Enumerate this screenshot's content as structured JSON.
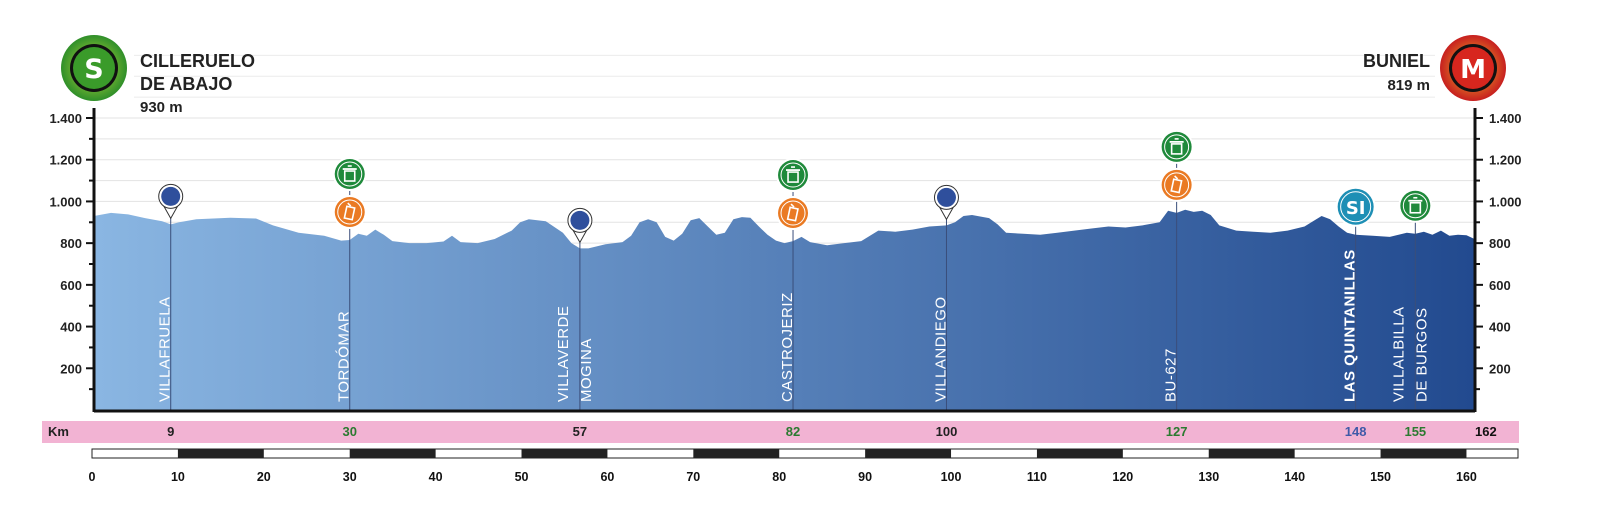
{
  "start": {
    "badge": "S",
    "name_lines": [
      "CILLERUELO",
      "DE ABAJO"
    ],
    "elevation": "930 m",
    "badge_color": "#3a9b2a"
  },
  "finish": {
    "badge": "M",
    "name_lines": [
      "BUNIEL"
    ],
    "elevation": "819 m",
    "badge_color": "#d7261e"
  },
  "colors": {
    "profile_start": "#8ab6e2",
    "profile_end": "#224a8f",
    "km_strip": "#f2b3d3",
    "waypoint_marker": "#2f4f9c",
    "feed_zone": "#1f8a3b",
    "sprint": "#ea7a23",
    "sprint_icon": "#1e8fb5"
  },
  "chart_data": {
    "type": "area",
    "title": "",
    "xlabel": "",
    "ylabel": "",
    "xlim": [
      0,
      162
    ],
    "ylim": [
      0,
      1400
    ],
    "y_ticks": [
      200,
      400,
      600,
      800,
      1000,
      1200,
      1400
    ],
    "y_tick_labels": [
      "200",
      "400",
      "600",
      "800",
      "1.000",
      "1.200",
      "1.400"
    ],
    "x_ticks": [
      0,
      10,
      20,
      30,
      40,
      50,
      60,
      70,
      80,
      90,
      100,
      110,
      120,
      130,
      140,
      150,
      160
    ],
    "km_label": "Km",
    "grid": true,
    "profile": [
      [
        0,
        930
      ],
      [
        2,
        945
      ],
      [
        4,
        938
      ],
      [
        6,
        920
      ],
      [
        8,
        905
      ],
      [
        9,
        890
      ],
      [
        10,
        900
      ],
      [
        12,
        915
      ],
      [
        16,
        922
      ],
      [
        19,
        918
      ],
      [
        21,
        885
      ],
      [
        24,
        850
      ],
      [
        27,
        835
      ],
      [
        29,
        812
      ],
      [
        30,
        815
      ],
      [
        31,
        845
      ],
      [
        32,
        835
      ],
      [
        33,
        865
      ],
      [
        34,
        840
      ],
      [
        35,
        810
      ],
      [
        37,
        800
      ],
      [
        39,
        800
      ],
      [
        41,
        808
      ],
      [
        42,
        835
      ],
      [
        43,
        805
      ],
      [
        45,
        800
      ],
      [
        47,
        820
      ],
      [
        49,
        860
      ],
      [
        50,
        900
      ],
      [
        51,
        915
      ],
      [
        53,
        905
      ],
      [
        55,
        850
      ],
      [
        56,
        800
      ],
      [
        57,
        775
      ],
      [
        58,
        775
      ],
      [
        60,
        795
      ],
      [
        62,
        805
      ],
      [
        63,
        835
      ],
      [
        64,
        900
      ],
      [
        65,
        915
      ],
      [
        66,
        900
      ],
      [
        67,
        830
      ],
      [
        68,
        812
      ],
      [
        69,
        845
      ],
      [
        70,
        910
      ],
      [
        71,
        920
      ],
      [
        72,
        880
      ],
      [
        73,
        840
      ],
      [
        74,
        850
      ],
      [
        75,
        915
      ],
      [
        76,
        925
      ],
      [
        77,
        922
      ],
      [
        78,
        880
      ],
      [
        79,
        840
      ],
      [
        80,
        812
      ],
      [
        81,
        800
      ],
      [
        82,
        810
      ],
      [
        83,
        830
      ],
      [
        84,
        805
      ],
      [
        86,
        790
      ],
      [
        88,
        800
      ],
      [
        90,
        810
      ],
      [
        92,
        860
      ],
      [
        94,
        855
      ],
      [
        96,
        865
      ],
      [
        98,
        880
      ],
      [
        100,
        885
      ],
      [
        101,
        900
      ],
      [
        102,
        930
      ],
      [
        103,
        935
      ],
      [
        105,
        920
      ],
      [
        106,
        890
      ],
      [
        107,
        850
      ],
      [
        109,
        845
      ],
      [
        111,
        840
      ],
      [
        113,
        850
      ],
      [
        115,
        860
      ],
      [
        117,
        870
      ],
      [
        119,
        880
      ],
      [
        121,
        875
      ],
      [
        123,
        885
      ],
      [
        125,
        900
      ],
      [
        126,
        955
      ],
      [
        127,
        945
      ],
      [
        128,
        960
      ],
      [
        129,
        950
      ],
      [
        130,
        955
      ],
      [
        131,
        935
      ],
      [
        132,
        885
      ],
      [
        134,
        860
      ],
      [
        136,
        855
      ],
      [
        138,
        850
      ],
      [
        140,
        860
      ],
      [
        142,
        880
      ],
      [
        143,
        905
      ],
      [
        144,
        930
      ],
      [
        145,
        915
      ],
      [
        146,
        880
      ],
      [
        147,
        850
      ],
      [
        148,
        840
      ],
      [
        150,
        835
      ],
      [
        152,
        830
      ],
      [
        154,
        850
      ],
      [
        155,
        845
      ],
      [
        156,
        855
      ],
      [
        157,
        840
      ],
      [
        158,
        860
      ],
      [
        159,
        835
      ],
      [
        160,
        840
      ],
      [
        161,
        838
      ],
      [
        162,
        819
      ]
    ],
    "waypoints": [
      {
        "km": 9,
        "label_lines": [
          "VILLAFRUELA"
        ],
        "km_label": "9",
        "km_color": "#222222",
        "icons": [
          "pin"
        ],
        "bold": false
      },
      {
        "km": 30,
        "label_lines": [
          "TORDÓMAR"
        ],
        "km_label": "30",
        "km_color": "#2b7a30",
        "icons": [
          "feed",
          "sprint"
        ],
        "bold": false
      },
      {
        "km": 57,
        "label_lines": [
          "VILLAVERDE",
          "MOGINA"
        ],
        "km_label": "57",
        "km_color": "#222222",
        "icons": [
          "pin"
        ],
        "bold": false
      },
      {
        "km": 82,
        "label_lines": [
          "CASTROJERIZ"
        ],
        "km_label": "82",
        "km_color": "#2b7a30",
        "icons": [
          "feed",
          "sprint"
        ],
        "bold": false
      },
      {
        "km": 100,
        "label_lines": [
          "VILLANDIEGO"
        ],
        "km_label": "100",
        "km_color": "#222222",
        "icons": [
          "pin"
        ],
        "bold": false
      },
      {
        "km": 127,
        "label_lines": [
          "BU-627"
        ],
        "km_label": "127",
        "km_color": "#2b7a30",
        "icons": [
          "feed",
          "sprint"
        ],
        "bold": false
      },
      {
        "km": 148,
        "label_lines": [
          "LAS QUINTANILLAS"
        ],
        "km_label": "148",
        "km_color": "#3f5aa8",
        "icons": [
          "si"
        ],
        "bold": true
      },
      {
        "km": 155,
        "label_lines": [
          "VILLALBILLA",
          "DE BURGOS"
        ],
        "km_label": "155",
        "km_color": "#2b7a30",
        "icons": [
          "feed"
        ],
        "bold": false
      }
    ],
    "end_km_label": "162",
    "si_label": "SI"
  }
}
